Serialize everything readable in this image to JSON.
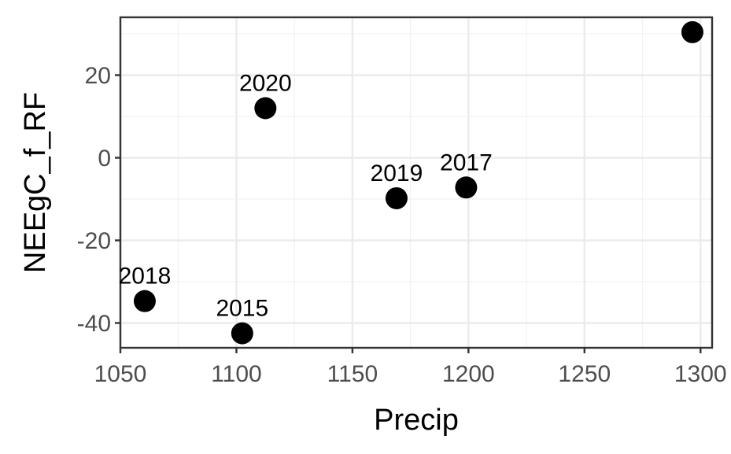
{
  "chart_data": {
    "type": "scatter",
    "xlabel": "Precip",
    "ylabel": "NEEgC_f_RF",
    "xlim": [
      1050,
      1305
    ],
    "ylim": [
      -46,
      34
    ],
    "x_ticks": [
      1050,
      1100,
      1150,
      1200,
      1250,
      1300
    ],
    "y_ticks": [
      -40,
      -20,
      0,
      20
    ],
    "grid": true,
    "legend": "none",
    "point_color": "#000000",
    "points": [
      {
        "x": 1060.5,
        "y": -34.7,
        "label": "2018"
      },
      {
        "x": 1102.5,
        "y": -42.5,
        "label": "2015"
      },
      {
        "x": 1112.5,
        "y": 12.0,
        "label": "2020"
      },
      {
        "x": 1169.0,
        "y": -9.8,
        "label": "2019"
      },
      {
        "x": 1199.0,
        "y": -7.2,
        "label": "2017"
      },
      {
        "x": 1296.5,
        "y": 30.4,
        "label": ""
      }
    ]
  }
}
